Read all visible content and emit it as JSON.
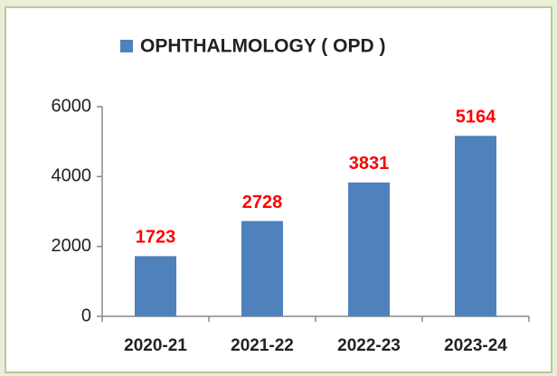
{
  "chart_data": {
    "type": "bar",
    "categories": [
      "2020-21",
      "2021-22",
      "2022-23",
      "2023-24"
    ],
    "series": [
      {
        "name": "OPHTHALMOLOGY ( OPD )",
        "color": "#4f81bd",
        "values": [
          1723,
          2728,
          3831,
          5164
        ]
      }
    ],
    "ylim": [
      0,
      6000
    ],
    "yticks": [
      0,
      2000,
      4000,
      6000
    ],
    "grid": false,
    "legend": "top",
    "data_labels": true,
    "data_label_color": "#ff0000"
  }
}
